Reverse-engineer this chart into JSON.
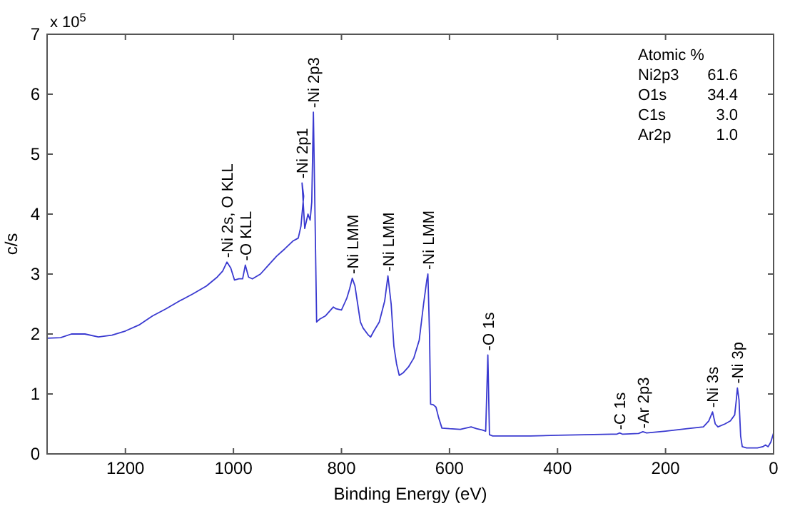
{
  "chart_data": {
    "type": "line",
    "xlabel": "Binding Energy (eV)",
    "ylabel": "c/s",
    "xlim": [
      1345,
      0
    ],
    "xticks": [
      1200,
      1000,
      800,
      600,
      400,
      200,
      0
    ],
    "ylim": [
      0,
      7
    ],
    "yticks": [
      0,
      1,
      2,
      3,
      4,
      5,
      6,
      7
    ],
    "grid": false,
    "marker": "none",
    "line_style": "solid",
    "series": [
      {
        "color": "#3a3ad0",
        "x": [
          1345,
          1320,
          1300,
          1275,
          1250,
          1225,
          1200,
          1175,
          1150,
          1125,
          1100,
          1075,
          1050,
          1030,
          1020,
          1012,
          1005,
          998,
          990,
          983,
          978,
          972,
          965,
          950,
          935,
          920,
          905,
          890,
          880,
          875,
          870,
          873,
          868,
          862,
          858,
          855,
          852,
          849,
          846,
          840,
          830,
          820,
          815,
          810,
          800,
          795,
          790,
          785,
          780,
          775,
          770,
          765,
          760,
          750,
          746,
          740,
          730,
          720,
          714,
          708,
          703,
          698,
          693,
          686,
          676,
          666,
          656,
          648,
          642,
          640,
          637,
          635,
          630,
          625,
          620,
          614,
          600,
          580,
          560,
          550,
          540,
          533,
          529,
          526,
          520,
          500,
          450,
          400,
          350,
          300,
          290,
          285,
          280,
          250,
          242,
          235,
          200,
          160,
          130,
          120,
          113,
          108,
          103,
          90,
          80,
          72,
          69,
          67,
          64,
          61,
          58,
          50,
          40,
          30,
          20,
          15,
          10,
          5,
          0
        ],
        "values": [
          1.93,
          1.94,
          2.0,
          2.0,
          1.95,
          1.98,
          2.05,
          2.15,
          2.3,
          2.42,
          2.55,
          2.67,
          2.8,
          2.95,
          3.05,
          3.2,
          3.1,
          2.9,
          2.92,
          2.92,
          3.15,
          2.95,
          2.92,
          3.0,
          3.15,
          3.3,
          3.42,
          3.55,
          3.6,
          3.8,
          4.3,
          4.52,
          3.76,
          4.0,
          3.9,
          4.2,
          5.7,
          4.0,
          2.2,
          2.25,
          2.3,
          2.4,
          2.45,
          2.42,
          2.4,
          2.5,
          2.6,
          2.75,
          2.93,
          2.8,
          2.5,
          2.2,
          2.1,
          1.98,
          1.95,
          2.05,
          2.2,
          2.55,
          2.97,
          2.5,
          1.8,
          1.5,
          1.31,
          1.35,
          1.45,
          1.6,
          1.9,
          2.5,
          2.9,
          3.0,
          2.0,
          0.83,
          0.82,
          0.78,
          0.6,
          0.43,
          0.42,
          0.41,
          0.45,
          0.42,
          0.4,
          0.38,
          1.65,
          0.32,
          0.3,
          0.3,
          0.3,
          0.31,
          0.32,
          0.33,
          0.33,
          0.35,
          0.33,
          0.34,
          0.37,
          0.35,
          0.38,
          0.42,
          0.45,
          0.55,
          0.7,
          0.5,
          0.45,
          0.5,
          0.55,
          0.65,
          0.9,
          1.1,
          0.9,
          0.3,
          0.12,
          0.1,
          0.1,
          0.1,
          0.12,
          0.15,
          0.12,
          0.2,
          0.35
        ]
      }
    ],
    "annotations": [
      "x 10$^{5}$",
      "Atomic %",
      "Ni2p3 61.6",
      "O1s 34.4",
      "C1s 3.0",
      "Ar2p 1.0",
      {
        "text": "-Ni 2s, O KLL",
        "x": 1012,
        "y": 3.2
      },
      {
        "text": "-O KLL",
        "x": 978,
        "y": 3.15
      },
      {
        "text": "-Ni 2p1",
        "x": 873,
        "y": 4.52
      },
      {
        "text": "-Ni 2p3",
        "x": 852,
        "y": 5.7
      },
      {
        "text": "-Ni LMM",
        "x": 780,
        "y": 2.93
      },
      {
        "text": "-Ni LMM",
        "x": 714,
        "y": 2.97
      },
      {
        "text": "-Ni LMM",
        "x": 640,
        "y": 3.0
      },
      {
        "text": "-O 1s",
        "x": 529,
        "y": 1.65
      },
      {
        "text": "-C 1s",
        "x": 285,
        "y": 0.33
      },
      {
        "text": "-Ar 2p3",
        "x": 242,
        "y": 0.35
      },
      {
        "text": "-Ni 3s",
        "x": 113,
        "y": 0.7
      },
      {
        "text": "-Ni 3p",
        "x": 67,
        "y": 1.1
      }
    ]
  }
}
